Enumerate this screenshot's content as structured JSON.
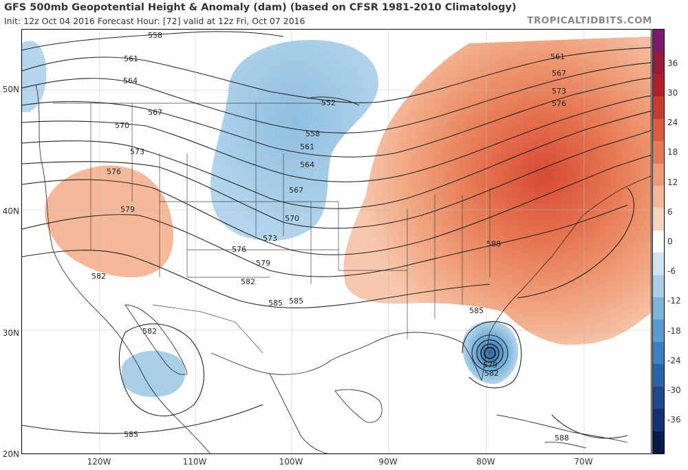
{
  "header": {
    "title": "GFS 500mb Geopotential Height & Anomaly (dam) (based on CFSR 1981-2010 Climatology)",
    "subtitle": "Init: 12z Oct 04 2016   Forecast Hour: [72]   valid at 12z Fri, Oct 07 2016",
    "credit": "TROPICALTIDBITS.COM"
  },
  "axes": {
    "lon_ticks": [
      "120W",
      "110W",
      "100W",
      "90W",
      "80W",
      "70W"
    ],
    "lat_ticks": [
      "50N",
      "40N",
      "30N",
      "20N"
    ]
  },
  "colorbar": {
    "labels": [
      "36",
      "30",
      "24",
      "18",
      "12",
      "6",
      "0",
      "-6",
      "-12",
      "-18",
      "-24",
      "-30",
      "-36"
    ],
    "colors": [
      "#7a1a6b",
      "#9a1a3c",
      "#b21d2a",
      "#c93a2e",
      "#dc5b3f",
      "#e67a58",
      "#ef9a76",
      "#f5b99a",
      "#f9d3bf",
      "#ffffff",
      "#cfe3f2",
      "#a9cfe7",
      "#7fb5da",
      "#5b9ccd",
      "#3d80bf",
      "#2a63a8",
      "#1d4a8c",
      "#14306d",
      "#0b1a4a"
    ]
  },
  "contours": {
    "labels": [
      "558",
      "561",
      "564",
      "567",
      "570",
      "573",
      "576",
      "579",
      "582",
      "585",
      "552",
      "558",
      "561",
      "564",
      "567",
      "570",
      "573",
      "576",
      "579",
      "582",
      "585",
      "561",
      "567",
      "573",
      "576",
      "588",
      "585",
      "579",
      "582",
      "582",
      "585",
      "588"
    ]
  }
}
